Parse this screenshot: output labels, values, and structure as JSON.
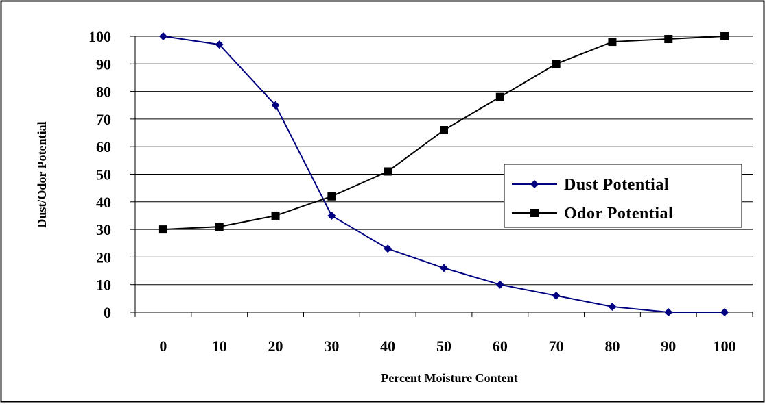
{
  "chart_data": {
    "type": "line",
    "title": "",
    "xlabel": "Percent Moisture Content",
    "ylabel": "Dust/Odor Potential",
    "x": [
      0,
      10,
      20,
      30,
      40,
      50,
      60,
      70,
      80,
      90,
      100
    ],
    "x_tick_labels": [
      "0",
      "10",
      "20",
      "30",
      "40",
      "50",
      "60",
      "70",
      "80",
      "90",
      "100"
    ],
    "y_tick_labels": [
      "0",
      "10",
      "20",
      "30",
      "40",
      "50",
      "60",
      "70",
      "80",
      "90",
      "100"
    ],
    "ylim": [
      0,
      100
    ],
    "y_step": 10,
    "grid": "horizontal",
    "legend_position": "right",
    "series": [
      {
        "name": "Dust Potential",
        "values": [
          100,
          97,
          75,
          35,
          23,
          16,
          10,
          6,
          2,
          0,
          0
        ],
        "color": "#000080",
        "marker": "diamond"
      },
      {
        "name": "Odor Potential",
        "values": [
          30,
          31,
          35,
          42,
          51,
          66,
          78,
          90,
          98,
          99,
          100
        ],
        "color": "#000000",
        "marker": "square"
      }
    ]
  }
}
